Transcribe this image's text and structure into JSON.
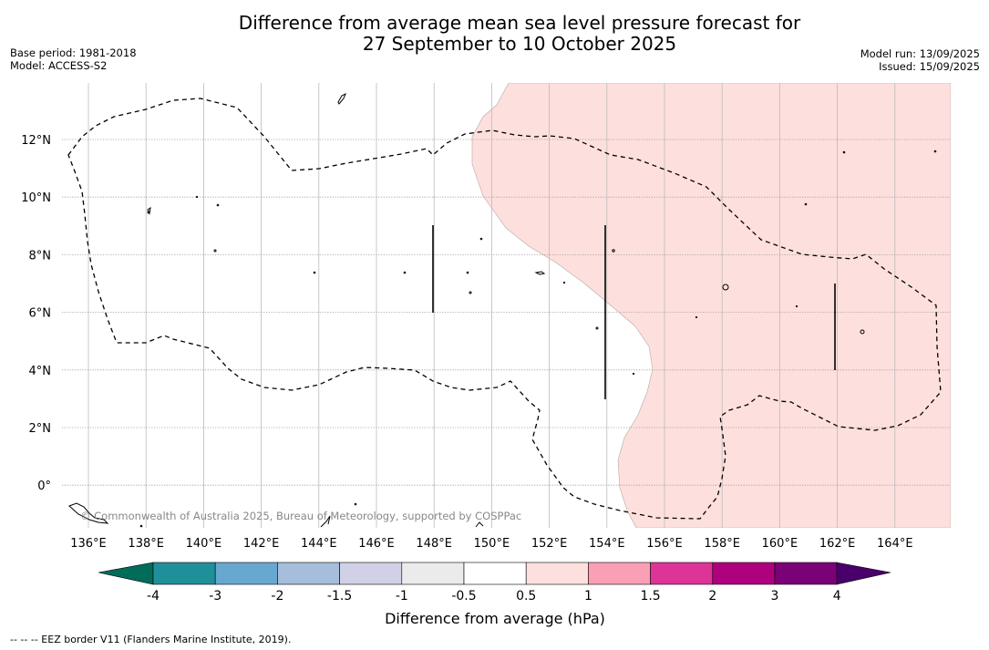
{
  "title": {
    "line1": "Difference from average mean sea level pressure forecast for",
    "line2": "27 September to 10 October 2025"
  },
  "meta": {
    "base_period": "Base period: 1981-2018",
    "model": "Model: ACCESS-S2",
    "model_run": "Model run: 13/09/2025",
    "issued": "Issued: 15/09/2025"
  },
  "map": {
    "lon_labels": [
      "136°E",
      "138°E",
      "140°E",
      "142°E",
      "144°E",
      "146°E",
      "148°E",
      "150°E",
      "152°E",
      "154°E",
      "156°E",
      "158°E",
      "160°E",
      "162°E",
      "164°E"
    ],
    "lat_labels": [
      "12°N",
      "10°N",
      "8°N",
      "6°N",
      "4°N",
      "2°N",
      "0°"
    ],
    "copyright": "© Commonwealth of Australia 2025, Bureau of Meteorology, supported by COSPPac",
    "anomaly_fill": "#fde0dd",
    "anomaly_class": "0.5 to 1"
  },
  "colorbar": {
    "title": "Difference from average (hPa)",
    "ticks": [
      "-4",
      "-3",
      "-2",
      "-1.5",
      "-1",
      "-0.5",
      "0.5",
      "1",
      "1.5",
      "2",
      "3",
      "4"
    ],
    "colors": [
      "#1f9099",
      "#67a8d1",
      "#a6bddb",
      "#d0d1e6",
      "#ebebeb",
      "#ffffff",
      "#fde0dd",
      "#fa9fb5",
      "#dd3497",
      "#ae017e",
      "#7a0177"
    ],
    "under_color": "#016c59",
    "over_color": "#49006a"
  },
  "footnote": "--  --  -- EEZ border V11 (Flanders Marine Institute, 2019)."
}
